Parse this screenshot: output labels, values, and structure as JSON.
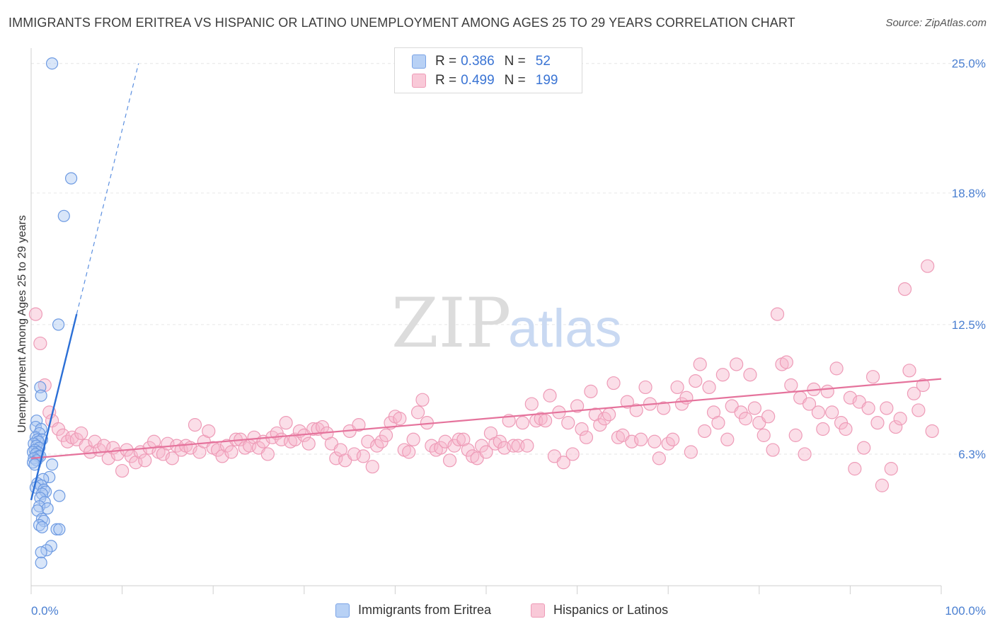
{
  "title": "IMMIGRANTS FROM ERITREA VS HISPANIC OR LATINO UNEMPLOYMENT AMONG AGES 25 TO 29 YEARS CORRELATION CHART",
  "source": "Source: ZipAtlas.com",
  "watermark": {
    "zip": "ZIP",
    "atlas": "atlas"
  },
  "legend": {
    "rows": [
      {
        "r_label": "R =",
        "r_value": "0.386",
        "n_label": "N =",
        "n_value": "52",
        "color": "#5b8fe0"
      },
      {
        "r_label": "R =",
        "r_value": "0.499",
        "n_label": "N =",
        "n_value": "199",
        "color": "#ee8fb0"
      }
    ]
  },
  "bottom_legend": [
    {
      "label": "Immigrants from Eritrea",
      "color": "#5b8fe0"
    },
    {
      "label": "Hispanics or Latinos",
      "color": "#ee8fb0"
    }
  ],
  "chart_data": {
    "type": "scatter",
    "title": "IMMIGRANTS FROM ERITREA VS HISPANIC OR LATINO UNEMPLOYMENT AMONG AGES 25 TO 29 YEARS CORRELATION CHART",
    "xlabel": "",
    "ylabel": "Unemployment Among Ages 25 to 29 years",
    "xlim": [
      0,
      100
    ],
    "ylim": [
      0,
      25.6
    ],
    "x_tick_labels": [
      "0.0%",
      "100.0%"
    ],
    "y_ticks": [
      6.3,
      12.5,
      18.8,
      25.0
    ],
    "y_tick_labels": [
      "6.3%",
      "12.5%",
      "18.8%",
      "25.0%"
    ],
    "grid": true,
    "series": [
      {
        "name": "Immigrants from Eritrea",
        "color": "#5b8fe0",
        "trend": {
          "x0": 0.0,
          "y0": 4.1,
          "x1": 5.0,
          "y1": 13.0,
          "dashed_to_x": 11.8,
          "dashed_to_y": 25.0
        },
        "points": [
          [
            2.3,
            25.0
          ],
          [
            4.4,
            19.5
          ],
          [
            3.6,
            17.7
          ],
          [
            3.0,
            12.5
          ],
          [
            1.0,
            9.5
          ],
          [
            1.1,
            9.1
          ],
          [
            0.6,
            7.9
          ],
          [
            0.5,
            7.6
          ],
          [
            1.1,
            7.5
          ],
          [
            0.9,
            7.3
          ],
          [
            0.5,
            7.1
          ],
          [
            0.7,
            7.0
          ],
          [
            1.2,
            7.0
          ],
          [
            0.8,
            6.9
          ],
          [
            0.3,
            6.8
          ],
          [
            0.6,
            6.7
          ],
          [
            0.9,
            6.6
          ],
          [
            0.4,
            6.5
          ],
          [
            0.7,
            6.4
          ],
          [
            0.2,
            6.4
          ],
          [
            0.5,
            6.3
          ],
          [
            0.8,
            6.2
          ],
          [
            1.0,
            6.2
          ],
          [
            0.3,
            6.1
          ],
          [
            0.6,
            6.0
          ],
          [
            0.2,
            5.9
          ],
          [
            0.4,
            5.8
          ],
          [
            2.3,
            5.8
          ],
          [
            2.0,
            5.2
          ],
          [
            1.3,
            5.1
          ],
          [
            0.7,
            4.9
          ],
          [
            1.1,
            4.8
          ],
          [
            0.5,
            4.7
          ],
          [
            1.4,
            4.6
          ],
          [
            1.6,
            4.5
          ],
          [
            1.2,
            4.4
          ],
          [
            3.1,
            4.3
          ],
          [
            1.0,
            4.2
          ],
          [
            1.5,
            4.0
          ],
          [
            0.9,
            3.8
          ],
          [
            1.8,
            3.7
          ],
          [
            0.7,
            3.6
          ],
          [
            1.2,
            3.2
          ],
          [
            1.4,
            3.1
          ],
          [
            0.9,
            2.9
          ],
          [
            1.2,
            2.8
          ],
          [
            2.8,
            2.7
          ],
          [
            3.1,
            2.7
          ],
          [
            2.2,
            1.9
          ],
          [
            1.7,
            1.7
          ],
          [
            1.1,
            1.6
          ],
          [
            1.1,
            1.1
          ]
        ]
      },
      {
        "name": "Hispanics or Latinos",
        "color": "#ee8fb0",
        "trend": {
          "x0": 0.0,
          "y0": 6.1,
          "x1": 100.0,
          "y1": 9.9
        },
        "points": [
          [
            0.5,
            13.0
          ],
          [
            1.0,
            11.6
          ],
          [
            1.5,
            9.6
          ],
          [
            2.0,
            8.3
          ],
          [
            2.3,
            7.9
          ],
          [
            3.0,
            7.5
          ],
          [
            3.5,
            7.2
          ],
          [
            4.0,
            6.9
          ],
          [
            4.5,
            7.1
          ],
          [
            5.0,
            7.0
          ],
          [
            5.5,
            7.3
          ],
          [
            6.0,
            6.7
          ],
          [
            6.5,
            6.4
          ],
          [
            7.0,
            6.9
          ],
          [
            7.5,
            6.5
          ],
          [
            8.0,
            6.7
          ],
          [
            8.5,
            6.1
          ],
          [
            9.0,
            6.6
          ],
          [
            9.5,
            6.3
          ],
          [
            10.0,
            5.5
          ],
          [
            10.5,
            6.5
          ],
          [
            11.0,
            6.2
          ],
          [
            11.5,
            5.9
          ],
          [
            12.0,
            6.4
          ],
          [
            12.5,
            6.0
          ],
          [
            13.0,
            6.6
          ],
          [
            13.5,
            6.9
          ],
          [
            14.0,
            6.4
          ],
          [
            14.5,
            6.3
          ],
          [
            15.0,
            6.8
          ],
          [
            15.5,
            6.1
          ],
          [
            16.0,
            6.7
          ],
          [
            16.5,
            6.5
          ],
          [
            17.0,
            6.7
          ],
          [
            17.5,
            6.6
          ],
          [
            18.0,
            7.7
          ],
          [
            18.5,
            6.4
          ],
          [
            19.0,
            6.9
          ],
          [
            19.5,
            7.4
          ],
          [
            20.0,
            6.6
          ],
          [
            20.5,
            6.5
          ],
          [
            21.0,
            6.2
          ],
          [
            21.5,
            6.7
          ],
          [
            22.0,
            6.4
          ],
          [
            22.5,
            7.0
          ],
          [
            23.0,
            7.0
          ],
          [
            23.5,
            6.6
          ],
          [
            24.0,
            6.7
          ],
          [
            24.5,
            7.1
          ],
          [
            25.0,
            6.6
          ],
          [
            25.5,
            6.9
          ],
          [
            26.0,
            6.3
          ],
          [
            26.5,
            7.1
          ],
          [
            27.0,
            7.3
          ],
          [
            27.5,
            7.0
          ],
          [
            28.0,
            7.8
          ],
          [
            28.5,
            6.9
          ],
          [
            29.0,
            7.0
          ],
          [
            29.5,
            7.4
          ],
          [
            30.0,
            7.2
          ],
          [
            30.5,
            6.8
          ],
          [
            31.0,
            7.5
          ],
          [
            31.5,
            7.5
          ],
          [
            32.0,
            7.6
          ],
          [
            32.5,
            7.3
          ],
          [
            33.0,
            6.8
          ],
          [
            33.5,
            6.1
          ],
          [
            34.0,
            6.5
          ],
          [
            34.5,
            6.0
          ],
          [
            35.0,
            7.4
          ],
          [
            35.5,
            6.3
          ],
          [
            36.0,
            7.7
          ],
          [
            36.5,
            6.2
          ],
          [
            37.0,
            6.9
          ],
          [
            37.5,
            5.7
          ],
          [
            38.0,
            6.7
          ],
          [
            38.5,
            6.9
          ],
          [
            39.0,
            7.2
          ],
          [
            39.5,
            7.8
          ],
          [
            40.0,
            8.1
          ],
          [
            40.5,
            8.0
          ],
          [
            41.0,
            6.5
          ],
          [
            41.5,
            6.4
          ],
          [
            42.0,
            7.0
          ],
          [
            42.5,
            8.3
          ],
          [
            43.0,
            8.9
          ],
          [
            43.5,
            7.8
          ],
          [
            44.0,
            6.7
          ],
          [
            44.5,
            6.5
          ],
          [
            45.0,
            6.6
          ],
          [
            45.5,
            6.9
          ],
          [
            46.0,
            6.0
          ],
          [
            46.5,
            6.7
          ],
          [
            47.0,
            7.0
          ],
          [
            47.5,
            7.0
          ],
          [
            48.0,
            6.5
          ],
          [
            48.5,
            6.2
          ],
          [
            49.0,
            6.1
          ],
          [
            49.5,
            6.7
          ],
          [
            50.0,
            6.4
          ],
          [
            50.5,
            7.3
          ],
          [
            51.0,
            6.8
          ],
          [
            51.5,
            6.9
          ],
          [
            52.0,
            6.6
          ],
          [
            52.5,
            7.9
          ],
          [
            53.0,
            6.7
          ],
          [
            53.5,
            6.7
          ],
          [
            54.0,
            7.8
          ],
          [
            54.5,
            6.7
          ],
          [
            55.0,
            8.7
          ],
          [
            55.5,
            7.9
          ],
          [
            56.0,
            8.0
          ],
          [
            56.5,
            7.9
          ],
          [
            57.0,
            9.1
          ],
          [
            57.5,
            6.2
          ],
          [
            58.0,
            8.3
          ],
          [
            58.5,
            5.9
          ],
          [
            59.0,
            7.8
          ],
          [
            59.5,
            6.3
          ],
          [
            60.0,
            8.6
          ],
          [
            60.5,
            7.5
          ],
          [
            61.0,
            7.1
          ],
          [
            61.5,
            9.3
          ],
          [
            62.0,
            8.2
          ],
          [
            62.5,
            7.7
          ],
          [
            63.0,
            8.0
          ],
          [
            63.5,
            8.2
          ],
          [
            64.0,
            9.7
          ],
          [
            64.5,
            7.1
          ],
          [
            65.0,
            7.2
          ],
          [
            65.5,
            8.8
          ],
          [
            66.0,
            6.9
          ],
          [
            66.5,
            8.4
          ],
          [
            67.0,
            7.0
          ],
          [
            67.5,
            9.5
          ],
          [
            68.0,
            8.7
          ],
          [
            68.5,
            6.9
          ],
          [
            69.0,
            6.1
          ],
          [
            69.5,
            8.5
          ],
          [
            70.0,
            6.8
          ],
          [
            70.5,
            7.0
          ],
          [
            71.0,
            9.5
          ],
          [
            71.5,
            8.7
          ],
          [
            72.0,
            9.0
          ],
          [
            72.5,
            6.4
          ],
          [
            73.0,
            9.8
          ],
          [
            73.5,
            10.6
          ],
          [
            74.0,
            7.4
          ],
          [
            74.5,
            9.5
          ],
          [
            75.0,
            8.3
          ],
          [
            75.5,
            7.8
          ],
          [
            76.0,
            10.1
          ],
          [
            76.5,
            7.0
          ],
          [
            77.0,
            8.6
          ],
          [
            77.5,
            10.6
          ],
          [
            78.0,
            8.3
          ],
          [
            78.5,
            8.0
          ],
          [
            79.0,
            10.1
          ],
          [
            79.5,
            8.5
          ],
          [
            80.0,
            7.8
          ],
          [
            80.5,
            7.2
          ],
          [
            81.0,
            8.1
          ],
          [
            81.5,
            6.5
          ],
          [
            82.0,
            13.0
          ],
          [
            82.5,
            10.6
          ],
          [
            83.0,
            10.7
          ],
          [
            83.5,
            9.6
          ],
          [
            84.0,
            7.2
          ],
          [
            84.5,
            9.0
          ],
          [
            85.0,
            6.3
          ],
          [
            85.5,
            8.7
          ],
          [
            86.0,
            9.4
          ],
          [
            86.5,
            8.3
          ],
          [
            87.0,
            7.5
          ],
          [
            87.5,
            9.3
          ],
          [
            88.0,
            8.3
          ],
          [
            88.5,
            10.4
          ],
          [
            89.0,
            7.8
          ],
          [
            89.5,
            7.5
          ],
          [
            90.0,
            9.0
          ],
          [
            90.5,
            5.6
          ],
          [
            91.0,
            8.8
          ],
          [
            91.5,
            6.6
          ],
          [
            92.0,
            8.5
          ],
          [
            92.5,
            10.0
          ],
          [
            93.0,
            7.8
          ],
          [
            93.5,
            4.8
          ],
          [
            94.0,
            8.5
          ],
          [
            94.5,
            5.6
          ],
          [
            95.0,
            7.6
          ],
          [
            95.5,
            8.0
          ],
          [
            96.0,
            14.2
          ],
          [
            96.5,
            10.3
          ],
          [
            97.0,
            9.2
          ],
          [
            97.5,
            8.4
          ],
          [
            98.0,
            9.6
          ],
          [
            98.5,
            15.3
          ],
          [
            99.0,
            7.4
          ]
        ]
      }
    ]
  }
}
